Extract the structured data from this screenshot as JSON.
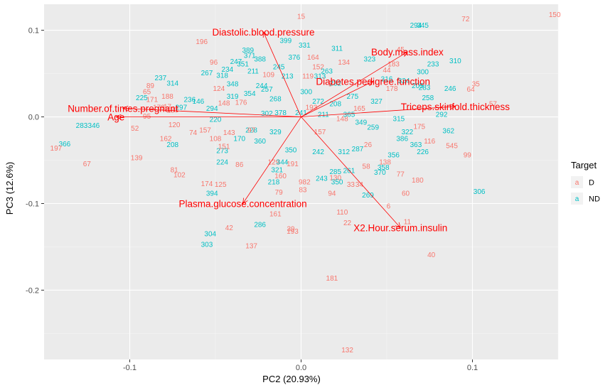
{
  "chart_data": {
    "type": "scatter",
    "title": "",
    "xlabel": "PC2 (20.93%)",
    "ylabel": "PC3 (12.6%)",
    "xlim": [
      -0.15,
      0.15
    ],
    "ylim": [
      -0.28,
      0.13
    ],
    "xticks": [
      {
        "v": -0.1,
        "label": "-0.1"
      },
      {
        "v": 0.0,
        "label": "0.0"
      },
      {
        "v": 0.1,
        "label": "0.1"
      }
    ],
    "yticks": [
      {
        "v": 0.1,
        "label": "0.1"
      },
      {
        "v": 0.0,
        "label": "0.0"
      },
      {
        "v": -0.1,
        "label": "-0.1"
      },
      {
        "v": -0.2,
        "label": "-0.2"
      }
    ],
    "grid": true,
    "legend": {
      "title": "Target",
      "position": "right",
      "glyph": "a"
    },
    "groups": [
      {
        "name": "D",
        "color": "#F8766D"
      },
      {
        "name": "ND",
        "color": "#00BFC4"
      }
    ],
    "loadings": [
      {
        "label": "Diastolic.blood.pressure",
        "x": -0.022,
        "y": 0.098
      },
      {
        "label": "Body.mass.index",
        "x": 0.062,
        "y": 0.075
      },
      {
        "label": "Diabetes.pedigree.function",
        "x": 0.042,
        "y": 0.041
      },
      {
        "label": "Number.of.times.pregnant",
        "x": -0.104,
        "y": 0.01
      },
      {
        "label": "Age",
        "x": -0.108,
        "y": 0.0
      },
      {
        "label": "Triceps.skinfold.thickness",
        "x": 0.09,
        "y": 0.012
      },
      {
        "label": "Plasma.glucose.concentration",
        "x": -0.034,
        "y": -0.1
      },
      {
        "label": "X2.Hour.serum.insulin",
        "x": 0.058,
        "y": -0.128
      }
    ],
    "observations": [
      {
        "label": "150",
        "g": 0,
        "x": 0.148,
        "y": 0.118
      },
      {
        "label": "72",
        "g": 0,
        "x": 0.096,
        "y": 0.113
      },
      {
        "label": "15",
        "g": 0,
        "x": 0.0,
        "y": 0.116
      },
      {
        "label": "294",
        "g": 1,
        "x": 0.067,
        "y": 0.106
      },
      {
        "label": "345",
        "g": 1,
        "x": 0.071,
        "y": 0.106
      },
      {
        "label": "196",
        "g": 0,
        "x": -0.058,
        "y": 0.087
      },
      {
        "label": "399",
        "g": 1,
        "x": -0.009,
        "y": 0.088
      },
      {
        "label": "331",
        "g": 1,
        "x": 0.002,
        "y": 0.083
      },
      {
        "label": "311",
        "g": 1,
        "x": 0.021,
        "y": 0.079
      },
      {
        "label": "389",
        "g": 1,
        "x": -0.031,
        "y": 0.077
      },
      {
        "label": "371",
        "g": 1,
        "x": -0.03,
        "y": 0.071
      },
      {
        "label": "388",
        "g": 1,
        "x": -0.024,
        "y": 0.067
      },
      {
        "label": "376",
        "g": 1,
        "x": -0.004,
        "y": 0.069
      },
      {
        "label": "247",
        "g": 1,
        "x": -0.038,
        "y": 0.064
      },
      {
        "label": "351",
        "g": 1,
        "x": -0.034,
        "y": 0.061
      },
      {
        "label": "96",
        "g": 0,
        "x": -0.051,
        "y": 0.063
      },
      {
        "label": "234",
        "g": 1,
        "x": -0.043,
        "y": 0.055
      },
      {
        "label": "245",
        "g": 1,
        "x": -0.013,
        "y": 0.058
      },
      {
        "label": "267",
        "g": 1,
        "x": -0.055,
        "y": 0.051
      },
      {
        "label": "318",
        "g": 1,
        "x": -0.046,
        "y": 0.048
      },
      {
        "label": "211",
        "g": 1,
        "x": -0.028,
        "y": 0.053
      },
      {
        "label": "109",
        "g": 0,
        "x": -0.019,
        "y": 0.049
      },
      {
        "label": "213",
        "g": 1,
        "x": -0.008,
        "y": 0.047
      },
      {
        "label": "237",
        "g": 1,
        "x": -0.082,
        "y": 0.045
      },
      {
        "label": "314",
        "g": 1,
        "x": -0.075,
        "y": 0.039
      },
      {
        "label": "348",
        "g": 1,
        "x": -0.04,
        "y": 0.038
      },
      {
        "label": "183",
        "g": 0,
        "x": 0.054,
        "y": 0.061
      },
      {
        "label": "44",
        "g": 0,
        "x": 0.05,
        "y": 0.054
      },
      {
        "label": "233",
        "g": 1,
        "x": 0.077,
        "y": 0.061
      },
      {
        "label": "310",
        "g": 1,
        "x": 0.09,
        "y": 0.065
      },
      {
        "label": "300",
        "g": 1,
        "x": 0.071,
        "y": 0.052
      },
      {
        "label": "323",
        "g": 1,
        "x": 0.04,
        "y": 0.067
      },
      {
        "label": "45",
        "g": 0,
        "x": 0.058,
        "y": 0.078
      },
      {
        "label": "178",
        "g": 0,
        "x": 0.053,
        "y": 0.033
      },
      {
        "label": "35",
        "g": 0,
        "x": 0.102,
        "y": 0.038
      },
      {
        "label": "64",
        "g": 0,
        "x": 0.099,
        "y": 0.032
      },
      {
        "label": "57",
        "g": 0,
        "x": 0.112,
        "y": 0.015
      },
      {
        "label": "246",
        "g": 1,
        "x": 0.087,
        "y": 0.033
      },
      {
        "label": "258",
        "g": 1,
        "x": 0.074,
        "y": 0.022
      },
      {
        "label": "292",
        "g": 1,
        "x": 0.082,
        "y": 0.003
      },
      {
        "label": "175",
        "g": 0,
        "x": 0.069,
        "y": -0.011
      },
      {
        "label": "362",
        "g": 1,
        "x": 0.086,
        "y": -0.016
      },
      {
        "label": "116",
        "g": 0,
        "x": 0.075,
        "y": -0.028
      },
      {
        "label": "545",
        "g": 0,
        "x": 0.088,
        "y": -0.033
      },
      {
        "label": "99",
        "g": 0,
        "x": 0.097,
        "y": -0.044
      },
      {
        "label": "226",
        "g": 1,
        "x": 0.071,
        "y": -0.04
      },
      {
        "label": "363",
        "g": 1,
        "x": 0.067,
        "y": -0.032
      },
      {
        "label": "315",
        "g": 1,
        "x": 0.057,
        "y": -0.002
      },
      {
        "label": "138",
        "g": 0,
        "x": 0.049,
        "y": -0.052
      },
      {
        "label": "356",
        "g": 1,
        "x": 0.054,
        "y": -0.044
      },
      {
        "label": "77",
        "g": 0,
        "x": 0.058,
        "y": -0.066
      },
      {
        "label": "180",
        "g": 0,
        "x": 0.068,
        "y": -0.073
      },
      {
        "label": "60",
        "g": 0,
        "x": 0.061,
        "y": -0.088
      },
      {
        "label": "306",
        "g": 1,
        "x": 0.104,
        "y": -0.086
      },
      {
        "label": "370",
        "g": 1,
        "x": 0.046,
        "y": -0.064
      },
      {
        "label": "358",
        "g": 1,
        "x": 0.048,
        "y": -0.058
      },
      {
        "label": "269",
        "g": 1,
        "x": 0.039,
        "y": -0.09
      },
      {
        "label": "6",
        "g": 0,
        "x": 0.051,
        "y": -0.103
      },
      {
        "label": "11",
        "g": 0,
        "x": 0.062,
        "y": -0.121
      },
      {
        "label": "40",
        "g": 0,
        "x": 0.076,
        "y": -0.159
      },
      {
        "label": "110",
        "g": 0,
        "x": 0.024,
        "y": -0.11
      },
      {
        "label": "22",
        "g": 0,
        "x": 0.027,
        "y": -0.122
      },
      {
        "label": "94",
        "g": 0,
        "x": 0.018,
        "y": -0.088
      },
      {
        "label": "33",
        "g": 0,
        "x": 0.029,
        "y": -0.078
      },
      {
        "label": "34",
        "g": 0,
        "x": 0.034,
        "y": -0.078
      },
      {
        "label": "58",
        "g": 0,
        "x": 0.038,
        "y": -0.057
      },
      {
        "label": "181",
        "g": 0,
        "x": 0.018,
        "y": -0.186
      },
      {
        "label": "132",
        "g": 0,
        "x": 0.027,
        "y": -0.269
      },
      {
        "label": "83",
        "g": 0,
        "x": 0.001,
        "y": -0.084
      },
      {
        "label": "130",
        "g": 0,
        "x": 0.02,
        "y": -0.07
      },
      {
        "label": "285",
        "g": 1,
        "x": 0.02,
        "y": -0.063
      },
      {
        "label": "261",
        "g": 1,
        "x": 0.028,
        "y": -0.062
      },
      {
        "label": "157",
        "g": 0,
        "x": 0.011,
        "y": -0.017
      },
      {
        "label": "329",
        "g": 1,
        "x": -0.015,
        "y": -0.017
      },
      {
        "label": "228",
        "g": 1,
        "x": -0.029,
        "y": -0.015
      },
      {
        "label": "360",
        "g": 1,
        "x": -0.024,
        "y": -0.028
      },
      {
        "label": "129",
        "g": 0,
        "x": -0.016,
        "y": -0.052
      },
      {
        "label": "344",
        "g": 1,
        "x": -0.011,
        "y": -0.052
      },
      {
        "label": "191",
        "g": 0,
        "x": -0.005,
        "y": -0.054
      },
      {
        "label": "321",
        "g": 1,
        "x": -0.014,
        "y": -0.061
      },
      {
        "label": "160",
        "g": 0,
        "x": -0.012,
        "y": -0.068
      },
      {
        "label": "218",
        "g": 1,
        "x": -0.016,
        "y": -0.075
      },
      {
        "label": "982",
        "g": 0,
        "x": 0.002,
        "y": -0.075
      },
      {
        "label": "79",
        "g": 0,
        "x": -0.013,
        "y": -0.087
      },
      {
        "label": "161",
        "g": 0,
        "x": -0.015,
        "y": -0.112
      },
      {
        "label": "286",
        "g": 1,
        "x": -0.024,
        "y": -0.124
      },
      {
        "label": "193",
        "g": 0,
        "x": -0.005,
        "y": -0.132
      },
      {
        "label": "39",
        "g": 0,
        "x": -0.006,
        "y": -0.129
      },
      {
        "label": "137",
        "g": 0,
        "x": -0.029,
        "y": -0.149
      },
      {
        "label": "42",
        "g": 0,
        "x": -0.042,
        "y": -0.128
      },
      {
        "label": "304",
        "g": 1,
        "x": -0.053,
        "y": -0.135
      },
      {
        "label": "303",
        "g": 1,
        "x": -0.055,
        "y": -0.147
      },
      {
        "label": "394",
        "g": 1,
        "x": -0.052,
        "y": -0.088
      },
      {
        "label": "174",
        "g": 0,
        "x": -0.055,
        "y": -0.077
      },
      {
        "label": "125",
        "g": 0,
        "x": -0.047,
        "y": -0.078
      },
      {
        "label": "102",
        "g": 0,
        "x": -0.071,
        "y": -0.067
      },
      {
        "label": "81",
        "g": 0,
        "x": -0.074,
        "y": -0.061
      },
      {
        "label": "224",
        "g": 1,
        "x": -0.046,
        "y": -0.052
      },
      {
        "label": "86",
        "g": 0,
        "x": -0.036,
        "y": -0.055
      },
      {
        "label": "273",
        "g": 1,
        "x": -0.046,
        "y": -0.039
      },
      {
        "label": "151",
        "g": 0,
        "x": -0.045,
        "y": -0.034
      },
      {
        "label": "108",
        "g": 0,
        "x": -0.05,
        "y": -0.025
      },
      {
        "label": "157",
        "g": 0,
        "x": -0.056,
        "y": -0.015
      },
      {
        "label": "74",
        "g": 0,
        "x": -0.063,
        "y": -0.018
      },
      {
        "label": "170",
        "g": 1,
        "x": -0.036,
        "y": -0.025
      },
      {
        "label": "143",
        "g": 0,
        "x": -0.042,
        "y": -0.018
      },
      {
        "label": "162",
        "g": 0,
        "x": -0.079,
        "y": -0.025
      },
      {
        "label": "208",
        "g": 1,
        "x": -0.075,
        "y": -0.032
      },
      {
        "label": "139",
        "g": 0,
        "x": -0.096,
        "y": -0.047
      },
      {
        "label": "67",
        "g": 0,
        "x": -0.125,
        "y": -0.054
      },
      {
        "label": "366",
        "g": 1,
        "x": -0.138,
        "y": -0.031
      },
      {
        "label": "197",
        "g": 0,
        "x": -0.143,
        "y": -0.036
      },
      {
        "label": "283",
        "g": 1,
        "x": -0.128,
        "y": -0.01
      },
      {
        "label": "346",
        "g": 1,
        "x": -0.121,
        "y": -0.01
      },
      {
        "label": "52",
        "g": 0,
        "x": -0.097,
        "y": -0.013
      },
      {
        "label": "95",
        "g": 0,
        "x": -0.09,
        "y": 0.001
      },
      {
        "label": "120",
        "g": 0,
        "x": -0.074,
        "y": -0.009
      },
      {
        "label": "225",
        "g": 1,
        "x": -0.093,
        "y": 0.022
      },
      {
        "label": "171",
        "g": 0,
        "x": -0.087,
        "y": 0.02
      },
      {
        "label": "179",
        "g": 0,
        "x": -0.083,
        "y": 0.011
      },
      {
        "label": "188",
        "g": 0,
        "x": -0.078,
        "y": 0.024
      },
      {
        "label": "89",
        "g": 0,
        "x": -0.088,
        "y": 0.036
      },
      {
        "label": "65",
        "g": 0,
        "x": -0.09,
        "y": 0.029
      },
      {
        "label": "17",
        "g": 0,
        "x": -0.078,
        "y": 0.012
      },
      {
        "label": "236",
        "g": 1,
        "x": -0.065,
        "y": 0.02
      },
      {
        "label": "146",
        "g": 1,
        "x": -0.06,
        "y": 0.018
      },
      {
        "label": "297",
        "g": 1,
        "x": -0.07,
        "y": 0.011
      },
      {
        "label": "294",
        "g": 1,
        "x": -0.052,
        "y": 0.01
      },
      {
        "label": "319",
        "g": 1,
        "x": -0.04,
        "y": 0.024
      },
      {
        "label": "148",
        "g": 0,
        "x": -0.045,
        "y": 0.016
      },
      {
        "label": "354",
        "g": 1,
        "x": -0.03,
        "y": 0.027
      },
      {
        "label": "124",
        "g": 0,
        "x": -0.048,
        "y": 0.033
      },
      {
        "label": "244",
        "g": 1,
        "x": -0.023,
        "y": 0.036
      },
      {
        "label": "257",
        "g": 1,
        "x": -0.02,
        "y": 0.032
      },
      {
        "label": "176",
        "g": 0,
        "x": -0.035,
        "y": 0.017
      },
      {
        "label": "268",
        "g": 1,
        "x": -0.015,
        "y": 0.021
      },
      {
        "label": "378",
        "g": 1,
        "x": -0.012,
        "y": 0.005
      },
      {
        "label": "241",
        "g": 1,
        "x": 0.0,
        "y": 0.005
      },
      {
        "label": "300",
        "g": 1,
        "x": 0.003,
        "y": 0.029
      },
      {
        "label": "272",
        "g": 1,
        "x": 0.01,
        "y": 0.018
      },
      {
        "label": "193",
        "g": 0,
        "x": 0.006,
        "y": 0.011
      },
      {
        "label": "208",
        "g": 1,
        "x": 0.02,
        "y": 0.015
      },
      {
        "label": "232",
        "g": 1,
        "x": 0.02,
        "y": 0.039
      },
      {
        "label": "152",
        "g": 0,
        "x": 0.01,
        "y": 0.058
      },
      {
        "label": "164",
        "g": 0,
        "x": 0.007,
        "y": 0.069
      },
      {
        "label": "263",
        "g": 1,
        "x": 0.015,
        "y": 0.053
      },
      {
        "label": "134",
        "g": 0,
        "x": 0.025,
        "y": 0.063
      },
      {
        "label": "313",
        "g": 1,
        "x": 0.011,
        "y": 0.047
      },
      {
        "label": "119",
        "g": 0,
        "x": 0.004,
        "y": 0.047
      },
      {
        "label": "5",
        "g": 0,
        "x": 0.017,
        "y": 0.038
      },
      {
        "label": "275",
        "g": 1,
        "x": 0.03,
        "y": 0.024
      },
      {
        "label": "165",
        "g": 0,
        "x": 0.034,
        "y": 0.01
      },
      {
        "label": "316",
        "g": 1,
        "x": 0.05,
        "y": 0.044
      },
      {
        "label": "324",
        "g": 1,
        "x": 0.06,
        "y": 0.042
      },
      {
        "label": "205",
        "g": 1,
        "x": 0.068,
        "y": 0.036
      },
      {
        "label": "283",
        "g": 1,
        "x": 0.072,
        "y": 0.034
      },
      {
        "label": "327",
        "g": 1,
        "x": 0.044,
        "y": 0.018
      },
      {
        "label": "349",
        "g": 1,
        "x": 0.035,
        "y": -0.006
      },
      {
        "label": "259",
        "g": 1,
        "x": 0.042,
        "y": -0.012
      },
      {
        "label": "322",
        "g": 1,
        "x": 0.062,
        "y": -0.017
      },
      {
        "label": "386",
        "g": 1,
        "x": 0.059,
        "y": -0.025
      },
      {
        "label": "26",
        "g": 0,
        "x": 0.039,
        "y": -0.032
      },
      {
        "label": "287",
        "g": 1,
        "x": 0.033,
        "y": -0.037
      },
      {
        "label": "312",
        "g": 1,
        "x": 0.025,
        "y": -0.04
      },
      {
        "label": "242",
        "g": 1,
        "x": 0.01,
        "y": -0.04
      },
      {
        "label": "350",
        "g": 1,
        "x": -0.006,
        "y": -0.038
      },
      {
        "label": "243",
        "g": 1,
        "x": 0.012,
        "y": -0.071
      },
      {
        "label": "350",
        "g": 1,
        "x": 0.021,
        "y": -0.075
      },
      {
        "label": "97",
        "g": 0,
        "x": -0.029,
        "y": -0.015
      },
      {
        "label": "220",
        "g": 1,
        "x": -0.05,
        "y": -0.003
      },
      {
        "label": "302",
        "g": 1,
        "x": -0.02,
        "y": 0.004
      },
      {
        "label": "187",
        "g": 0,
        "x": -0.075,
        "y": 0.008
      },
      {
        "label": "211",
        "g": 1,
        "x": 0.013,
        "y": 0.003
      },
      {
        "label": "148",
        "g": 0,
        "x": 0.024,
        "y": -0.002
      },
      {
        "label": "365",
        "g": 1,
        "x": 0.028,
        "y": 0.003
      }
    ]
  }
}
